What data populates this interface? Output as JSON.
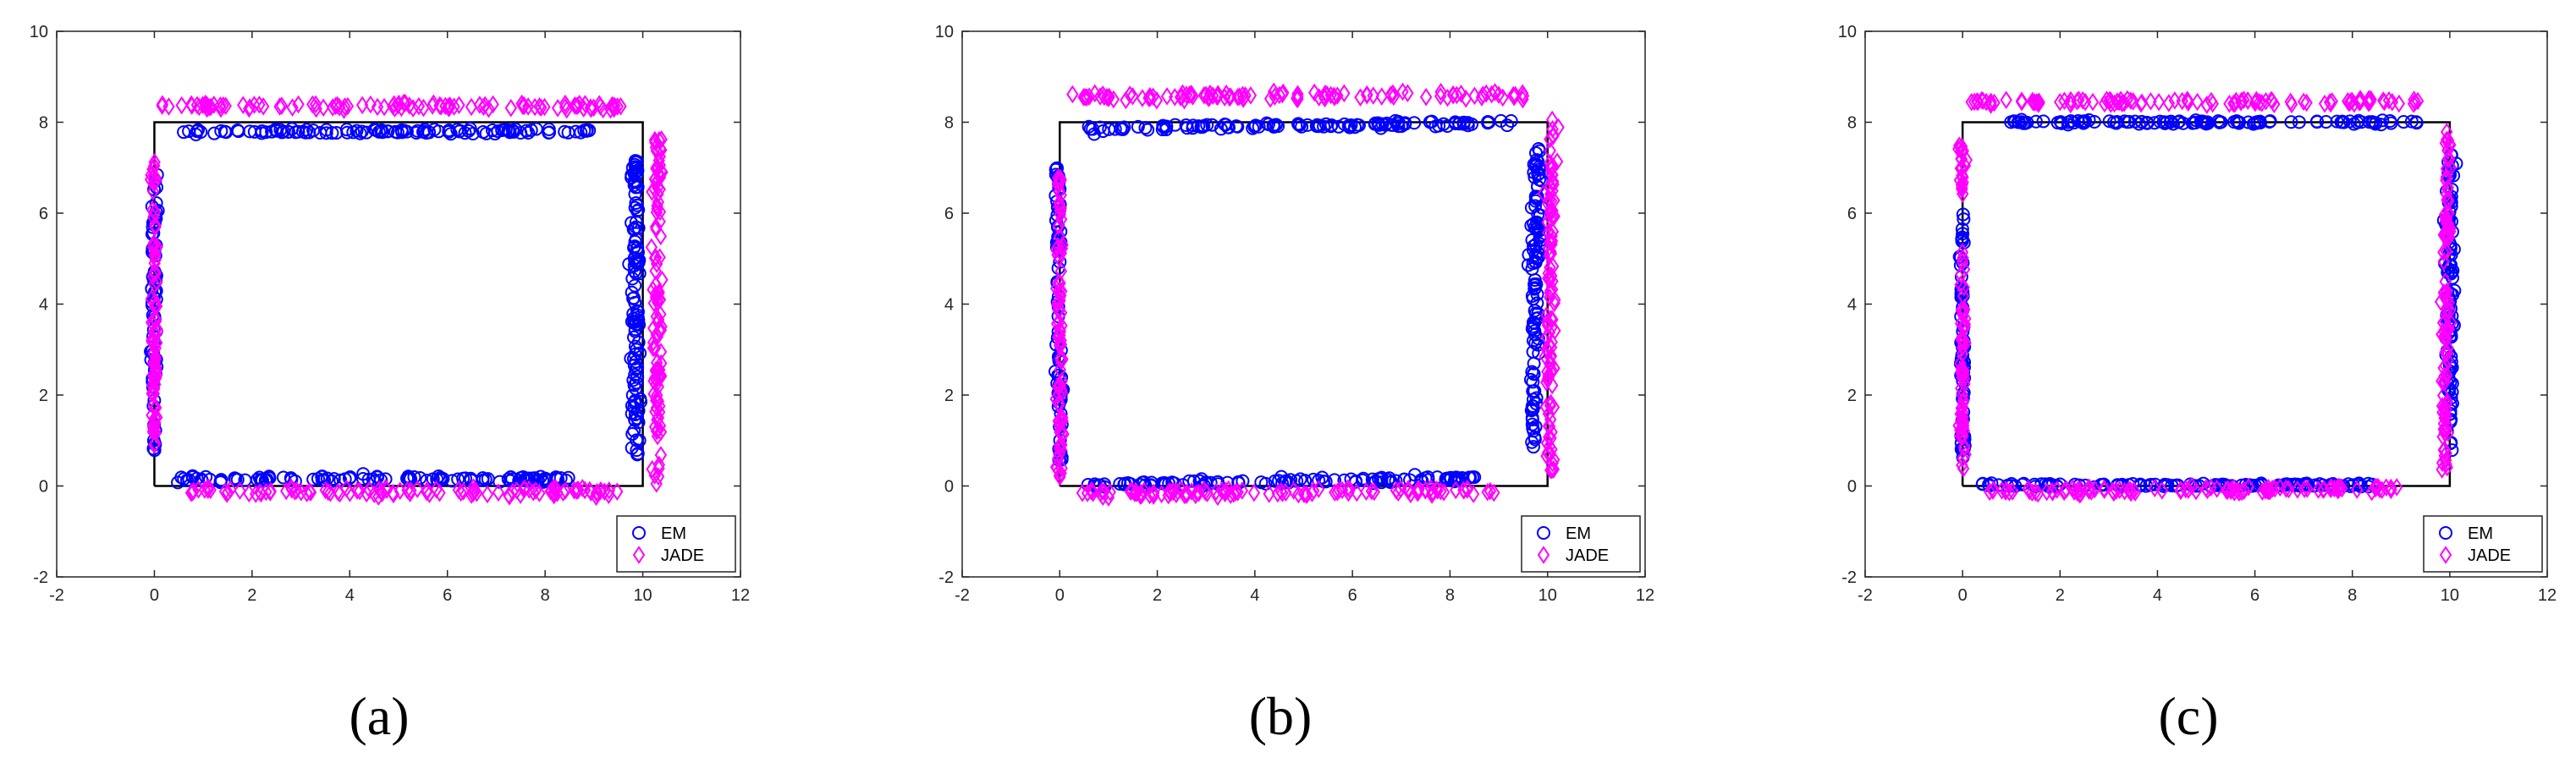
{
  "colors": {
    "em": "#0000ff",
    "jade": "#ff00ff",
    "true_source": "#000000",
    "axes": "#262626"
  },
  "legend_marker_icons": [
    "circle-icon",
    "diamond-icon"
  ],
  "chart_data": [
    {
      "type": "scatter",
      "panel_label": "(a)",
      "title": "",
      "xlabel": "",
      "ylabel": "",
      "xlim": [
        -2,
        12
      ],
      "ylim": [
        -2,
        10
      ],
      "xticks": [
        "-2",
        "0",
        "2",
        "4",
        "6",
        "8",
        "10",
        "12"
      ],
      "yticks": [
        "-2",
        "0",
        "2",
        "4",
        "6",
        "8",
        "10"
      ],
      "grid": false,
      "legend": "bottom-right",
      "reference_path": [
        [
          0,
          0
        ],
        [
          10,
          0
        ],
        [
          10,
          8
        ],
        [
          0,
          8
        ],
        [
          0,
          0
        ]
      ],
      "series": [
        {
          "name": "EM",
          "marker": "circle",
          "segments": [
            {
              "from": [
                0.5,
                7.8
              ],
              "to": [
                9.0,
                7.8
              ],
              "spread": 0.03,
              "count": 110
            },
            {
              "from": [
                0.5,
                0.15
              ],
              "to": [
                8.5,
                0.15
              ],
              "spread": 0.03,
              "count": 110
            },
            {
              "from": [
                9.85,
                0.7
              ],
              "to": [
                9.85,
                7.25
              ],
              "spread": 0.04,
              "count": 110
            },
            {
              "from": [
                0.0,
                0.7
              ],
              "to": [
                0.0,
                6.9
              ],
              "spread": 0.03,
              "count": 70
            }
          ]
        },
        {
          "name": "JADE",
          "marker": "diamond",
          "segments": [
            {
              "from": [
                0.2,
                8.35
              ],
              "to": [
                9.6,
                8.35
              ],
              "spread": 0.04,
              "count": 110
            },
            {
              "from": [
                0.6,
                -0.12
              ],
              "to": [
                9.5,
                -0.12
              ],
              "spread": 0.04,
              "count": 110
            },
            {
              "from": [
                10.3,
                0.0
              ],
              "to": [
                10.3,
                7.7
              ],
              "spread": 0.05,
              "count": 110
            },
            {
              "from": [
                0.0,
                0.9
              ],
              "to": [
                0.0,
                7.2
              ],
              "spread": 0.03,
              "count": 90
            }
          ]
        }
      ]
    },
    {
      "type": "scatter",
      "panel_label": "(b)",
      "title": "",
      "xlabel": "",
      "ylabel": "",
      "xlim": [
        -2,
        12
      ],
      "ylim": [
        -2,
        10
      ],
      "xticks": [
        "-2",
        "0",
        "2",
        "4",
        "6",
        "8",
        "10",
        "12"
      ],
      "yticks": [
        "-2",
        "0",
        "2",
        "4",
        "6",
        "8",
        "10"
      ],
      "grid": false,
      "legend": "bottom-right",
      "reference_path": [
        [
          0,
          0
        ],
        [
          10,
          0
        ],
        [
          10,
          8
        ],
        [
          0,
          8
        ],
        [
          0,
          0
        ]
      ],
      "series": [
        {
          "name": "EM",
          "marker": "circle",
          "segments": [
            {
              "from": [
                0.6,
                7.85
              ],
              "to": [
                9.3,
                8.0
              ],
              "spread": 0.03,
              "count": 110
            },
            {
              "from": [
                0.5,
                0.03
              ],
              "to": [
                8.5,
                0.17
              ],
              "spread": 0.03,
              "count": 110
            },
            {
              "from": [
                9.8,
                7.4
              ],
              "to": [
                9.7,
                0.8
              ],
              "spread": 0.05,
              "count": 110
            },
            {
              "from": [
                0.0,
                0.5
              ],
              "to": [
                -0.05,
                7.2
              ],
              "spread": 0.03,
              "count": 70
            }
          ]
        },
        {
          "name": "JADE",
          "marker": "diamond",
          "segments": [
            {
              "from": [
                0.3,
                8.55
              ],
              "to": [
                9.6,
                8.6
              ],
              "spread": 0.04,
              "count": 110
            },
            {
              "from": [
                0.4,
                -0.15
              ],
              "to": [
                9.0,
                -0.1
              ],
              "spread": 0.04,
              "count": 110
            },
            {
              "from": [
                10.1,
                8.2
              ],
              "to": [
                10.05,
                0.3
              ],
              "spread": 0.05,
              "count": 110
            },
            {
              "from": [
                0.0,
                0.0
              ],
              "to": [
                0.0,
                6.8
              ],
              "spread": 0.03,
              "count": 90
            }
          ]
        }
      ]
    },
    {
      "type": "scatter",
      "panel_label": "(c)",
      "title": "",
      "xlabel": "",
      "ylabel": "",
      "xlim": [
        -2,
        12
      ],
      "ylim": [
        -2,
        10
      ],
      "xticks": [
        "-2",
        "0",
        "2",
        "4",
        "6",
        "8",
        "10",
        "12"
      ],
      "yticks": [
        "-2",
        "0",
        "2",
        "4",
        "6",
        "8",
        "10"
      ],
      "grid": false,
      "legend": "bottom-right",
      "reference_path": [
        [
          0,
          0
        ],
        [
          10,
          0
        ],
        [
          10,
          8
        ],
        [
          0,
          8
        ],
        [
          0,
          0
        ]
      ],
      "series": [
        {
          "name": "EM",
          "marker": "circle",
          "segments": [
            {
              "from": [
                1.0,
                8.0
              ],
              "to": [
                9.4,
                8.0
              ],
              "spread": 0.02,
              "count": 110
            },
            {
              "from": [
                0.4,
                0.02
              ],
              "to": [
                8.4,
                0.02
              ],
              "spread": 0.02,
              "count": 110
            },
            {
              "from": [
                10.0,
                0.8
              ],
              "to": [
                10.0,
                7.4
              ],
              "spread": 0.04,
              "count": 110
            },
            {
              "from": [
                0.0,
                0.6
              ],
              "to": [
                0.0,
                6.0
              ],
              "spread": 0.02,
              "count": 70
            }
          ]
        },
        {
          "name": "JADE",
          "marker": "diamond",
          "segments": [
            {
              "from": [
                0.2,
                8.45
              ],
              "to": [
                9.6,
                8.45
              ],
              "spread": 0.03,
              "count": 110
            },
            {
              "from": [
                0.5,
                -0.12
              ],
              "to": [
                9.0,
                -0.05
              ],
              "spread": 0.03,
              "count": 110
            },
            {
              "from": [
                9.9,
                0.3
              ],
              "to": [
                9.95,
                8.0
              ],
              "spread": 0.04,
              "count": 110
            },
            {
              "from": [
                0.0,
                0.4
              ],
              "to": [
                0.0,
                7.6
              ],
              "spread": 0.03,
              "count": 90
            }
          ]
        }
      ]
    }
  ]
}
